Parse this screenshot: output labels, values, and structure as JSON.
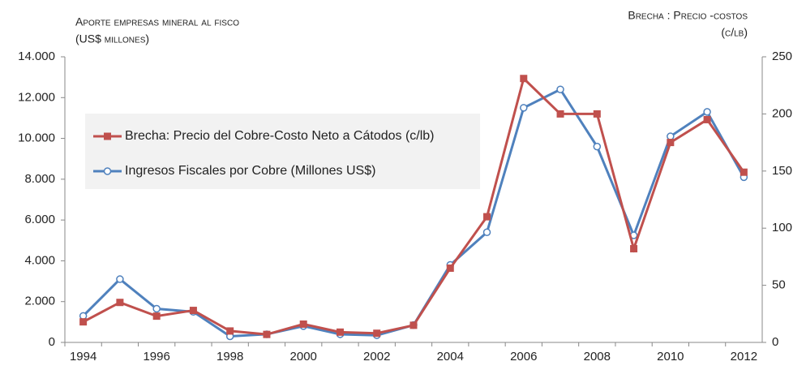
{
  "chart_data": {
    "type": "line",
    "ylabel": [
      "Aporte empresas mineral al fisco",
      "(US$ millones)"
    ],
    "y2label": [
      "Brecha : Precio -costos",
      "(c/lb)"
    ],
    "categories": [
      "1994",
      null,
      "1996",
      null,
      "1998",
      null,
      "2000",
      null,
      "2002",
      null,
      "2004",
      null,
      "2006",
      null,
      "2008",
      null,
      "2010",
      null,
      "2012"
    ],
    "ylim": [
      0,
      14000
    ],
    "yticks": [
      {
        "value": 0,
        "label": "0"
      },
      {
        "value": 2000,
        "label": "2.000"
      },
      {
        "value": 4000,
        "label": "4.000"
      },
      {
        "value": 6000,
        "label": "6.000"
      },
      {
        "value": 8000,
        "label": "8.000"
      },
      {
        "value": 10000,
        "label": "10.000"
      },
      {
        "value": 12000,
        "label": "12.000"
      },
      {
        "value": 14000,
        "label": "14.000"
      }
    ],
    "y2lim": [
      0,
      250
    ],
    "y2ticks": [
      0,
      50,
      100,
      150,
      200,
      250
    ],
    "series": [
      {
        "name": "Brecha: Precio del Cobre-Costo Neto a Cátodos (c/lb)",
        "color": "#c0504d",
        "axis": "y2",
        "marker": "square",
        "values": [
          18,
          35,
          23,
          28,
          10,
          7,
          16,
          9,
          8,
          15,
          65,
          110,
          231,
          200,
          200,
          82,
          175,
          195,
          149
        ]
      },
      {
        "name": "Ingresos Fiscales por Cobre (Millones US$)",
        "color": "#4f81bd",
        "axis": "y",
        "marker": "circle",
        "values": [
          1300,
          3100,
          1650,
          1500,
          300,
          400,
          800,
          400,
          350,
          850,
          3800,
          5400,
          11500,
          12400,
          9600,
          5250,
          10100,
          11300,
          8100
        ]
      }
    ]
  }
}
